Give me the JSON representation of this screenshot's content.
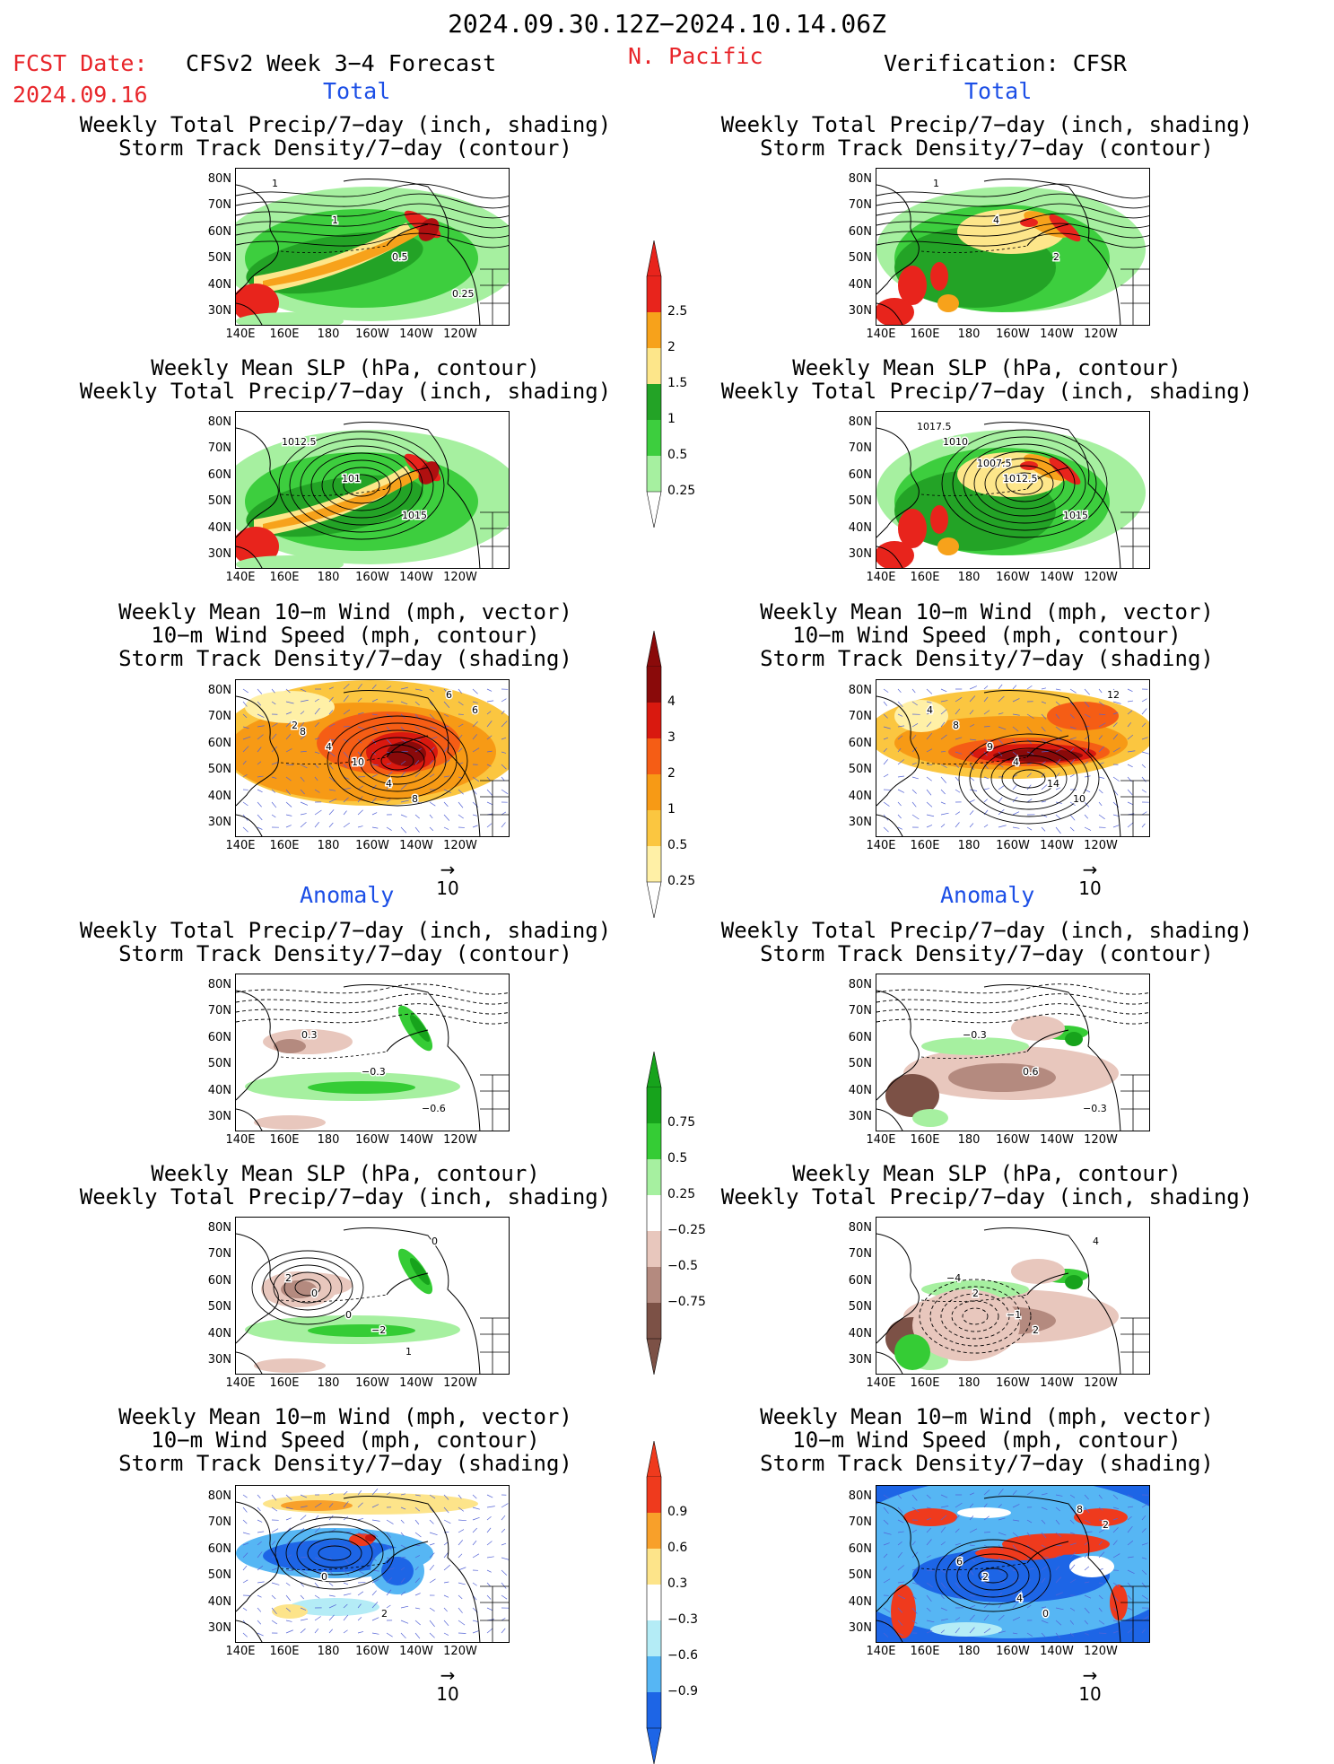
{
  "header": {
    "period": "2024.09.30.12Z−2024.10.14.06Z",
    "fcst_label": "FCST Date:",
    "fcst_date": "2024.09.16",
    "model_label": "CFSv2 Week 3−4 Forecast",
    "region": "N. Pacific",
    "verification": "Verification: CFSR"
  },
  "sections": {
    "total": "Total",
    "anomaly": "Anomaly"
  },
  "panel_titles": {
    "precip_storm": [
      "Weekly Total Precip/7−day (inch, shading)",
      "Storm Track Density/7−day (contour)"
    ],
    "slp_precip": [
      "Weekly Mean SLP (hPa, contour)",
      "Weekly Total Precip/7−day (inch, shading)"
    ],
    "wind_storm": [
      "Weekly Mean 10−m Wind (mph, vector)",
      "10−m Wind Speed (mph, contour)",
      "Storm Track Density/7−day (shading)"
    ]
  },
  "axes": {
    "lat_labels": [
      "80N",
      "70N",
      "60N",
      "50N",
      "40N",
      "30N"
    ],
    "lon_labels": [
      "140E",
      "160E",
      "180",
      "160W",
      "140W",
      "120W"
    ]
  },
  "vector_ref": "10",
  "colorbars": {
    "precip_total": {
      "labels": [
        "2.5",
        "2",
        "1.5",
        "1",
        "0.5",
        "0.25"
      ],
      "colors": [
        "#e8241c",
        "#f7a21b",
        "#fde68a",
        "#23a326",
        "#3dce3e",
        "#a6f0a0"
      ]
    },
    "storm_total": {
      "labels": [
        "4",
        "3",
        "2",
        "1",
        "0.5",
        "0.25"
      ],
      "colors": [
        "#8a0a0a",
        "#d9190f",
        "#f55d15",
        "#f79a15",
        "#fbc640",
        "#fff0a6"
      ]
    },
    "precip_anom": {
      "labels": [
        "0.75",
        "0.5",
        "0.25",
        "−0.25",
        "−0.5",
        "−0.75"
      ],
      "colors": [
        "#17a31c",
        "#35cc35",
        "#a6f0a0",
        "#ffffff",
        "#e8c7bd",
        "#b48a7f",
        "#7c5146"
      ]
    },
    "storm_anom": {
      "labels": [
        "0.9",
        "0.6",
        "0.3",
        "−0.3",
        "−0.6",
        "−0.9"
      ],
      "colors": [
        "#ef3a1d",
        "#f8a02a",
        "#fde48a",
        "#ffffff",
        "#b4ecf6",
        "#56b6f4",
        "#1d65e6"
      ]
    }
  },
  "contour_labels": {
    "p1": [
      "1",
      "1",
      "0.5",
      "0.25"
    ],
    "p2": [
      "1012.5",
      "101",
      "1015"
    ],
    "p3": [
      "2",
      "10",
      "8",
      "6",
      "4",
      "4",
      "6",
      "8"
    ],
    "p4": [
      "0.3",
      "−0.3",
      "−0.6"
    ],
    "p5": [
      "0",
      "−2",
      "0",
      "2",
      "0",
      "1"
    ],
    "p6": [
      "0",
      "2"
    ],
    "p7": [
      "1",
      "4",
      "2"
    ],
    "p8": [
      "1010",
      "1012.5",
      "1015",
      "1017.5",
      "1007.5"
    ],
    "p9": [
      "8",
      "4",
      "10",
      "4",
      "9",
      "14",
      "12"
    ],
    "p10": [
      "−0.3",
      "0.6",
      "−0.3"
    ],
    "p11": [
      "2",
      "2",
      "4",
      "−4",
      "−1"
    ],
    "p12": [
      "2",
      "0",
      "2",
      "6",
      "4",
      "8"
    ]
  }
}
